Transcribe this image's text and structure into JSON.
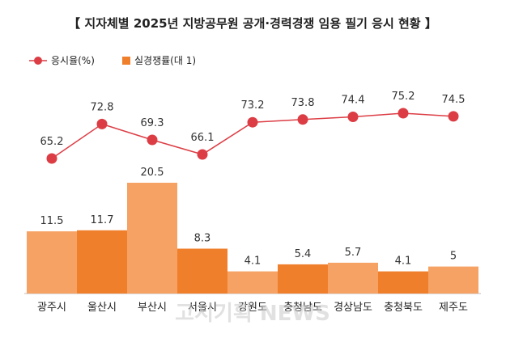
{
  "watermark": "고시기획 NEWS",
  "chart_data": {
    "type": "bar+line",
    "title": "【 지자체별 2025년 지방공무원 공개·경력경쟁 임용 필기 응시 현황 】",
    "categories": [
      "광주시",
      "울산시",
      "부산시",
      "서울시",
      "강원도",
      "충청남도",
      "경상남도",
      "충청북도",
      "제주도"
    ],
    "legend": [
      {
        "name": "응시율(%)",
        "kind": "line",
        "color": "#dc3d44"
      },
      {
        "name": "실경쟁률(대 1)",
        "kind": "bar",
        "color": "#f07f2c"
      }
    ],
    "line_series": {
      "name": "응시율(%)",
      "values": [
        65.2,
        72.8,
        69.3,
        66.1,
        73.2,
        73.8,
        74.4,
        75.2,
        74.5
      ],
      "labels": [
        "65.2",
        "72.8",
        "69.3",
        "66.1",
        "73.2",
        "73.8",
        "74.4",
        "75.2",
        "74.5"
      ],
      "color": "#dc3d44"
    },
    "bar_series": {
      "name": "실경쟁률(대 1)",
      "values": [
        11.5,
        11.7,
        20.5,
        8.3,
        4.1,
        5.4,
        5.7,
        4.1,
        5
      ],
      "labels": [
        "11.5",
        "11.7",
        "20.5",
        "8.3",
        "4.1",
        "5.4",
        "5.7",
        "4.1",
        "5"
      ],
      "colors": [
        "#f5a264",
        "#f07f2c",
        "#f5a264",
        "#f07f2c",
        "#f5a264",
        "#f07f2c",
        "#f5a264",
        "#f07f2c",
        "#f5a264"
      ]
    },
    "line_range": [
      60,
      80
    ],
    "bar_range": [
      0,
      22
    ],
    "grid": false,
    "legend_position": "top-left"
  }
}
